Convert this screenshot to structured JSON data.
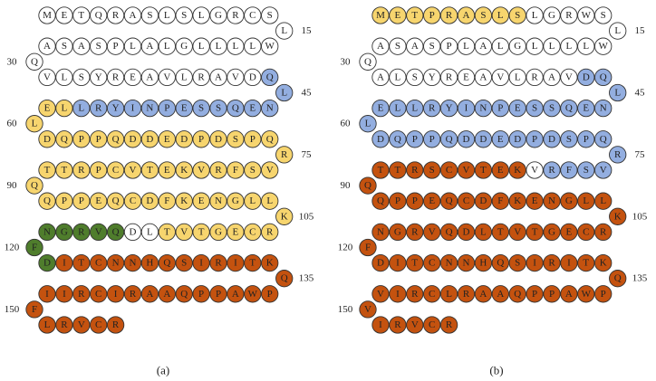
{
  "palette": {
    "w": "#ffffff",
    "y": "#f7d56e",
    "b": "#93aee0",
    "o": "#c4520f",
    "g": "#4f7d2c"
  },
  "panels": [
    {
      "label": "(a)",
      "rows": [
        {
          "letters": "METQRASLSLGRCS",
          "colors": "wwwwwwwwwwwwww"
        },
        {
          "letters": "ASASPLALGLLLLW",
          "colors": "wwwwwwwwwwwwww"
        },
        {
          "letters": "VLSYREAVLRAVDQ",
          "colors": "wwwwwwwwwwwwwb"
        },
        {
          "letters": "ELLRYINPESSQEN",
          "colors": "yybbbbbbbbbbbb"
        },
        {
          "letters": "DQPPQDDEDPDSPQ",
          "colors": "yyyyyyyyyyyyyy"
        },
        {
          "letters": "TTRPCVTEKVRFSV",
          "colors": "yyyyyyyyyyyyyy"
        },
        {
          "letters": "QPPEQCDFKENGLL",
          "colors": "yyyyyyyyyyyyyy"
        },
        {
          "letters": "NGRVQDLTVTGECR",
          "colors": "gggggwwyyyyyyy"
        },
        {
          "letters": "DITCNNHQSIRITK",
          "colors": "gooooooooooooo"
        },
        {
          "letters": "IIRCIRAAQPPAWP",
          "colors": "oooooooooooooo"
        },
        {
          "letters": "LRVCR",
          "colors": "ooooo"
        }
      ],
      "turns": [
        {
          "letter": "L",
          "color": "w",
          "number": 15
        },
        {
          "letter": "Q",
          "color": "w",
          "number": 30
        },
        {
          "letter": "L",
          "color": "b",
          "number": 45
        },
        {
          "letter": "L",
          "color": "y",
          "number": 60
        },
        {
          "letter": "R",
          "color": "y",
          "number": 75
        },
        {
          "letter": "Q",
          "color": "y",
          "number": 90
        },
        {
          "letter": "K",
          "color": "y",
          "number": 105
        },
        {
          "letter": "F",
          "color": "g",
          "number": 120
        },
        {
          "letter": "Q",
          "color": "o",
          "number": 135
        },
        {
          "letter": "F",
          "color": "o",
          "number": 150
        }
      ]
    },
    {
      "label": "(b)",
      "rows": [
        {
          "letters": "METPRASLSLGRWS",
          "colors": "yyyyyyyyywwwww"
        },
        {
          "letters": "ASASPLALGLLLLW",
          "colors": "wwwwwwwwwwwwww"
        },
        {
          "letters": "ALSYREAVLRAVDQ",
          "colors": "wwwwwwwwwwwwbb"
        },
        {
          "letters": "ELLRYINPESSQEN",
          "colors": "bbbbbbbbbbbbbb"
        },
        {
          "letters": "DQPPQDDEDPDSPQ",
          "colors": "bbbbbbbbbbbbbb"
        },
        {
          "letters": "TTRSCVTEKVRFSV",
          "colors": "ooooooooowbbbb"
        },
        {
          "letters": "QPPEQCDFKENGLL",
          "colors": "oooooooooooooo"
        },
        {
          "letters": "NGRVQDLTVTGECR",
          "colors": "oooooooooooooo"
        },
        {
          "letters": "DITCNNHQSIRITK",
          "colors": "oooooooooooooo"
        },
        {
          "letters": "VIRCLRAAQPPAWP",
          "colors": "oooooooooooooo"
        },
        {
          "letters": "IRVCR",
          "colors": "ooooo"
        }
      ],
      "turns": [
        {
          "letter": "L",
          "color": "w",
          "number": 15
        },
        {
          "letter": "Q",
          "color": "w",
          "number": 30
        },
        {
          "letter": "L",
          "color": "b",
          "number": 45
        },
        {
          "letter": "L",
          "color": "b",
          "number": 60
        },
        {
          "letter": "R",
          "color": "b",
          "number": 75
        },
        {
          "letter": "Q",
          "color": "o",
          "number": 90
        },
        {
          "letter": "K",
          "color": "o",
          "number": 105
        },
        {
          "letter": "F",
          "color": "o",
          "number": 120
        },
        {
          "letter": "Q",
          "color": "o",
          "number": 135
        },
        {
          "letter": "V",
          "color": "o",
          "number": 150
        }
      ]
    }
  ]
}
